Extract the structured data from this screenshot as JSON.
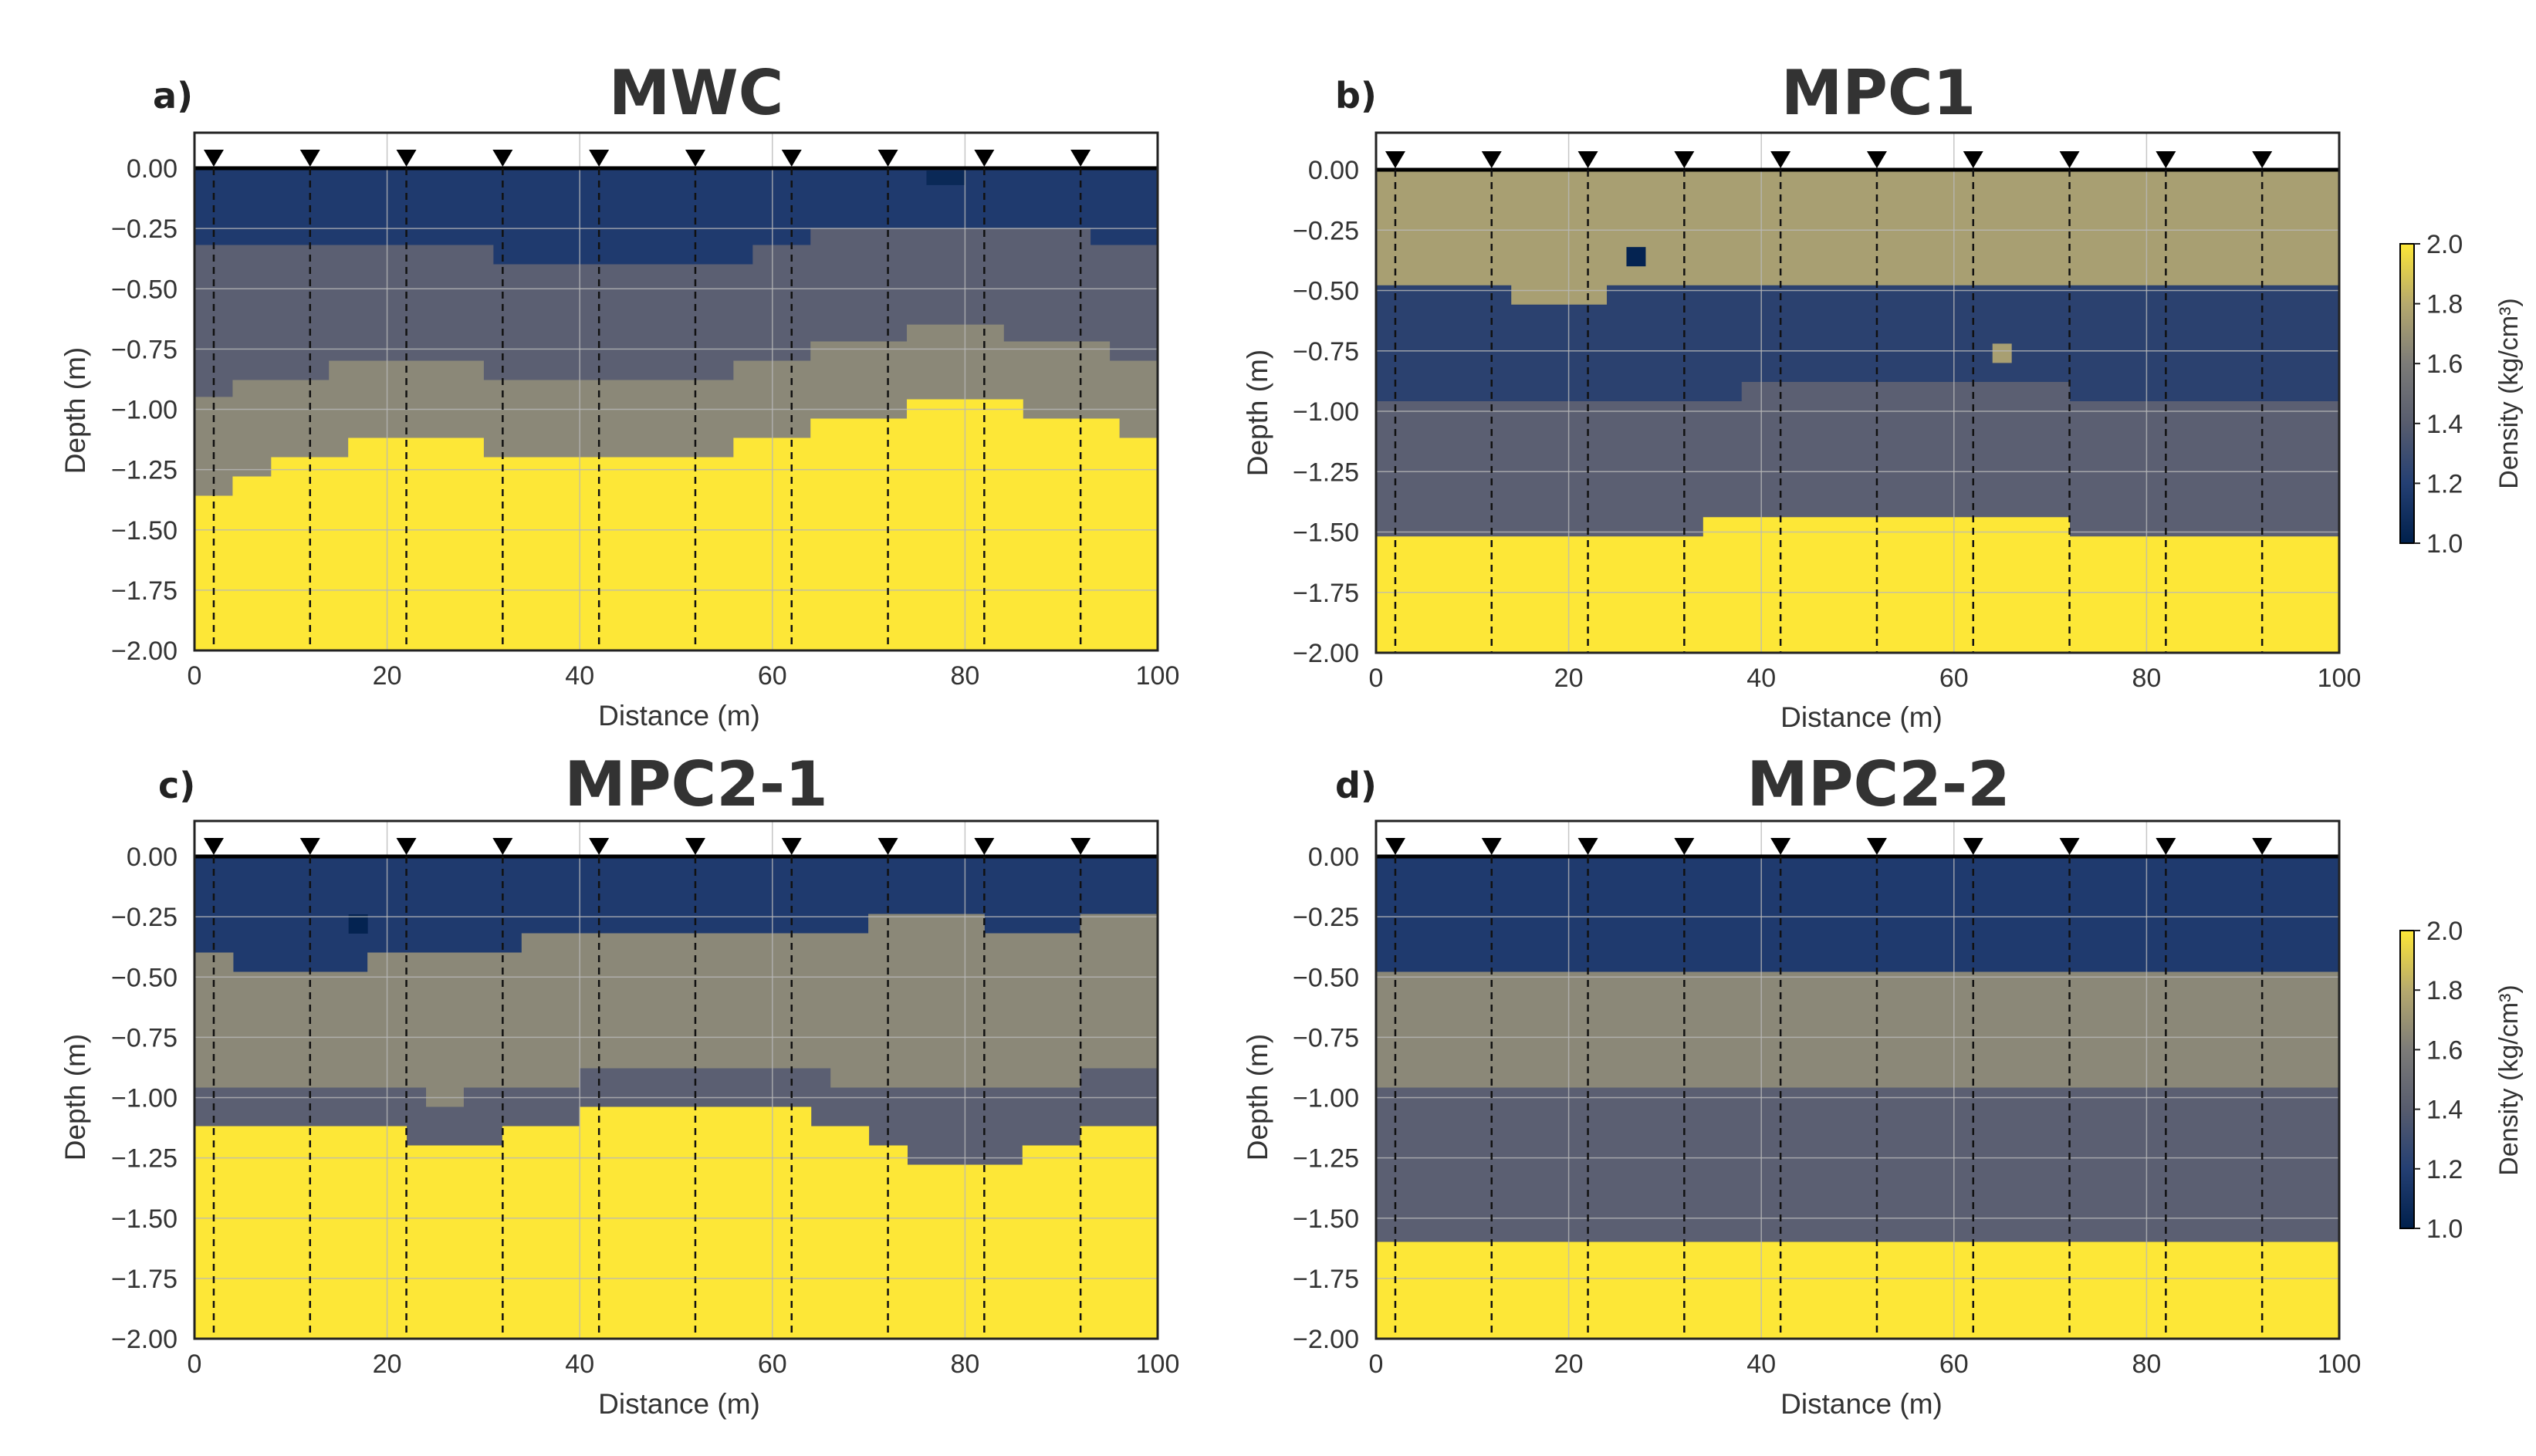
{
  "colors": {
    "density_scale": [
      {
        "value": 1.0,
        "hex": "#00204c"
      },
      {
        "value": 1.15,
        "hex": "#1f3a6e"
      },
      {
        "value": 1.4,
        "hex": "#5b5f72"
      },
      {
        "value": 1.6,
        "hex": "#8b8878"
      },
      {
        "value": 1.75,
        "hex": "#a89f72"
      },
      {
        "value": 2.0,
        "hex": "#fde737"
      }
    ],
    "electrode_marker": "#000000",
    "gridline": "#b8b8b8"
  },
  "chart_data": [
    {
      "type": "heatmap",
      "panel_label": "a)",
      "title": "MWC",
      "xlabel": "Distance (m)",
      "ylabel": "Depth (m)",
      "xlim": [
        0,
        100
      ],
      "ylim": [
        -2.0,
        0.0
      ],
      "xticks": [
        0,
        20,
        40,
        60,
        80,
        100
      ],
      "yticks": [
        0.0,
        -0.25,
        -0.5,
        -0.75,
        -1.0,
        -1.25,
        -1.5,
        -1.75,
        -2.0
      ],
      "ytick_labels": [
        "0.00",
        "−0.25",
        "−0.50",
        "−0.75",
        "−1.00",
        "−1.25",
        "−1.50",
        "−1.75",
        "−2.00"
      ],
      "electrodes_x": [
        2,
        12,
        22,
        32,
        42,
        52,
        62,
        72,
        82,
        92
      ],
      "grid": true,
      "layers": [
        {
          "density": 1.15,
          "top": [
            [
              0,
              0
            ]
          ],
          "bottom": [
            [
              0,
              -0.32
            ],
            [
              31,
              -0.32
            ],
            [
              31,
              -0.4
            ],
            [
              58,
              -0.4
            ],
            [
              58,
              -0.32
            ],
            [
              64,
              -0.32
            ],
            [
              64,
              -0.25
            ],
            [
              93,
              -0.25
            ],
            [
              93,
              -0.32
            ],
            [
              100,
              -0.32
            ]
          ]
        },
        {
          "density": 1.4,
          "bottom": [
            [
              0,
              -0.95
            ],
            [
              4,
              -0.95
            ],
            [
              4,
              -0.88
            ],
            [
              14,
              -0.88
            ],
            [
              14,
              -0.8
            ],
            [
              30,
              -0.8
            ],
            [
              30,
              -0.88
            ],
            [
              56,
              -0.88
            ],
            [
              56,
              -0.8
            ],
            [
              64,
              -0.8
            ],
            [
              64,
              -0.72
            ],
            [
              74,
              -0.72
            ],
            [
              74,
              -0.65
            ],
            [
              84,
              -0.65
            ],
            [
              84,
              -0.72
            ],
            [
              95,
              -0.72
            ],
            [
              95,
              -0.8
            ],
            [
              100,
              -0.8
            ]
          ]
        },
        {
          "density": 1.6,
          "bottom": [
            [
              0,
              -1.36
            ],
            [
              4,
              -1.36
            ],
            [
              4,
              -1.28
            ],
            [
              8,
              -1.28
            ],
            [
              8,
              -1.2
            ],
            [
              16,
              -1.2
            ],
            [
              16,
              -1.12
            ],
            [
              30,
              -1.12
            ],
            [
              30,
              -1.2
            ],
            [
              56,
              -1.2
            ],
            [
              56,
              -1.12
            ],
            [
              64,
              -1.12
            ],
            [
              64,
              -1.04
            ],
            [
              74,
              -1.04
            ],
            [
              74,
              -0.96
            ],
            [
              86,
              -0.96
            ],
            [
              86,
              -1.04
            ],
            [
              96,
              -1.04
            ],
            [
              96,
              -1.12
            ],
            [
              100,
              -1.12
            ]
          ]
        },
        {
          "density": 2.0,
          "bottom": [
            [
              0,
              -2.0
            ],
            [
              100,
              -2.0
            ]
          ]
        }
      ],
      "anomalies": [
        {
          "x": [
            76,
            80
          ],
          "y": [
            -0.01,
            -0.07
          ],
          "density": 1.05
        }
      ]
    },
    {
      "type": "heatmap",
      "panel_label": "b)",
      "title": "MPC1",
      "xlabel": "Distance (m)",
      "ylabel": "Depth (m)",
      "xlim": [
        0,
        100
      ],
      "ylim": [
        -2.0,
        0.0
      ],
      "xticks": [
        0,
        20,
        40,
        60,
        80,
        100
      ],
      "yticks": [
        0.0,
        -0.25,
        -0.5,
        -0.75,
        -1.0,
        -1.25,
        -1.5,
        -1.75,
        -2.0
      ],
      "ytick_labels": [
        "0.00",
        "−0.25",
        "−0.50",
        "−0.75",
        "−1.00",
        "−1.25",
        "−1.50",
        "−1.75",
        "−2.00"
      ],
      "electrodes_x": [
        2,
        12,
        22,
        32,
        42,
        52,
        62,
        72,
        82,
        92
      ],
      "grid": true,
      "layers": [
        {
          "density": 1.75,
          "bottom": [
            [
              0,
              -0.48
            ],
            [
              14,
              -0.48
            ],
            [
              14,
              -0.56
            ],
            [
              24,
              -0.56
            ],
            [
              24,
              -0.48
            ],
            [
              100,
              -0.48
            ]
          ]
        },
        {
          "density": 1.2,
          "bottom": [
            [
              0,
              -0.96
            ],
            [
              38,
              -0.96
            ],
            [
              38,
              -0.88
            ],
            [
              72,
              -0.88
            ],
            [
              72,
              -0.96
            ],
            [
              100,
              -0.96
            ]
          ]
        },
        {
          "density": 1.4,
          "bottom": [
            [
              0,
              -1.52
            ],
            [
              34,
              -1.52
            ],
            [
              34,
              -1.44
            ],
            [
              72,
              -1.44
            ],
            [
              72,
              -1.52
            ],
            [
              100,
              -1.52
            ]
          ]
        },
        {
          "density": 2.0,
          "bottom": [
            [
              0,
              -2.0
            ],
            [
              100,
              -2.0
            ]
          ]
        }
      ],
      "anomalies": [
        {
          "x": [
            26,
            28
          ],
          "y": [
            -0.32,
            -0.4
          ],
          "density": 1.02
        },
        {
          "x": [
            64,
            66
          ],
          "y": [
            -0.72,
            -0.8
          ],
          "density": 1.75
        }
      ]
    },
    {
      "type": "heatmap",
      "panel_label": "c)",
      "title": "MPC2-1",
      "xlabel": "Distance (m)",
      "ylabel": "Depth (m)",
      "xlim": [
        0,
        100
      ],
      "ylim": [
        -2.0,
        0.0
      ],
      "xticks": [
        0,
        20,
        40,
        60,
        80,
        100
      ],
      "yticks": [
        0.0,
        -0.25,
        -0.5,
        -0.75,
        -1.0,
        -1.25,
        -1.5,
        -1.75,
        -2.0
      ],
      "ytick_labels": [
        "0.00",
        "−0.25",
        "−0.50",
        "−0.75",
        "−1.00",
        "−1.25",
        "−1.50",
        "−1.75",
        "−2.00"
      ],
      "electrodes_x": [
        2,
        12,
        22,
        32,
        42,
        52,
        62,
        72,
        82,
        92
      ],
      "grid": true,
      "layers": [
        {
          "density": 1.15,
          "bottom": [
            [
              0,
              -0.4
            ],
            [
              4,
              -0.4
            ],
            [
              4,
              -0.48
            ],
            [
              18,
              -0.48
            ],
            [
              18,
              -0.4
            ],
            [
              34,
              -0.4
            ],
            [
              34,
              -0.32
            ],
            [
              70,
              -0.32
            ],
            [
              70,
              -0.24
            ],
            [
              82,
              -0.24
            ],
            [
              82,
              -0.32
            ],
            [
              92,
              -0.32
            ],
            [
              92,
              -0.24
            ],
            [
              100,
              -0.24
            ]
          ]
        },
        {
          "density": 1.6,
          "bottom": [
            [
              0,
              -0.96
            ],
            [
              24,
              -0.96
            ],
            [
              24,
              -1.04
            ],
            [
              28,
              -1.04
            ],
            [
              28,
              -0.96
            ],
            [
              40,
              -0.96
            ],
            [
              40,
              -0.88
            ],
            [
              66,
              -0.88
            ],
            [
              66,
              -0.96
            ],
            [
              92,
              -0.96
            ],
            [
              92,
              -0.88
            ],
            [
              100,
              -0.88
            ]
          ]
        },
        {
          "density": 1.4,
          "bottom": [
            [
              0,
              -1.12
            ],
            [
              22,
              -1.12
            ],
            [
              22,
              -1.2
            ],
            [
              32,
              -1.2
            ],
            [
              32,
              -1.12
            ],
            [
              40,
              -1.12
            ],
            [
              40,
              -1.04
            ],
            [
              64,
              -1.04
            ],
            [
              64,
              -1.12
            ],
            [
              70,
              -1.12
            ],
            [
              70,
              -1.2
            ],
            [
              74,
              -1.2
            ],
            [
              74,
              -1.28
            ],
            [
              86,
              -1.28
            ],
            [
              86,
              -1.2
            ],
            [
              92,
              -1.2
            ],
            [
              92,
              -1.12
            ],
            [
              100,
              -1.12
            ]
          ]
        },
        {
          "density": 2.0,
          "bottom": [
            [
              0,
              -2.0
            ],
            [
              100,
              -2.0
            ]
          ]
        }
      ],
      "anomalies": [
        {
          "x": [
            16,
            18
          ],
          "y": [
            -0.24,
            -0.32
          ],
          "density": 1.02
        }
      ]
    },
    {
      "type": "heatmap",
      "panel_label": "d)",
      "title": "MPC2-2",
      "xlabel": "Distance (m)",
      "ylabel": "Depth (m)",
      "xlim": [
        0,
        100
      ],
      "ylim": [
        -2.0,
        0.0
      ],
      "xticks": [
        0,
        20,
        40,
        60,
        80,
        100
      ],
      "yticks": [
        0.0,
        -0.25,
        -0.5,
        -0.75,
        -1.0,
        -1.25,
        -1.5,
        -1.75,
        -2.0
      ],
      "ytick_labels": [
        "0.00",
        "−0.25",
        "−0.50",
        "−0.75",
        "−1.00",
        "−1.25",
        "−1.50",
        "−1.75",
        "−2.00"
      ],
      "electrodes_x": [
        2,
        12,
        22,
        32,
        42,
        52,
        62,
        72,
        82,
        92
      ],
      "grid": true,
      "layers": [
        {
          "density": 1.15,
          "bottom": [
            [
              0,
              -0.48
            ],
            [
              100,
              -0.48
            ]
          ]
        },
        {
          "density": 1.6,
          "bottom": [
            [
              0,
              -0.96
            ],
            [
              100,
              -0.96
            ]
          ]
        },
        {
          "density": 1.4,
          "bottom": [
            [
              0,
              -1.6
            ],
            [
              100,
              -1.6
            ]
          ]
        },
        {
          "density": 2.0,
          "bottom": [
            [
              0,
              -2.0
            ],
            [
              100,
              -2.0
            ]
          ]
        }
      ],
      "anomalies": []
    }
  ],
  "colorbars": [
    {
      "label": "Density (kg/cm³)",
      "range": [
        1.0,
        2.0
      ],
      "ticks": [
        "1.0",
        "1.2",
        "1.4",
        "1.6",
        "1.8",
        "2.0"
      ]
    },
    {
      "label": "Density (kg/cm³)",
      "range": [
        1.0,
        2.0
      ],
      "ticks": [
        "1.0",
        "1.2",
        "1.4",
        "1.6",
        "1.8",
        "2.0"
      ]
    }
  ]
}
